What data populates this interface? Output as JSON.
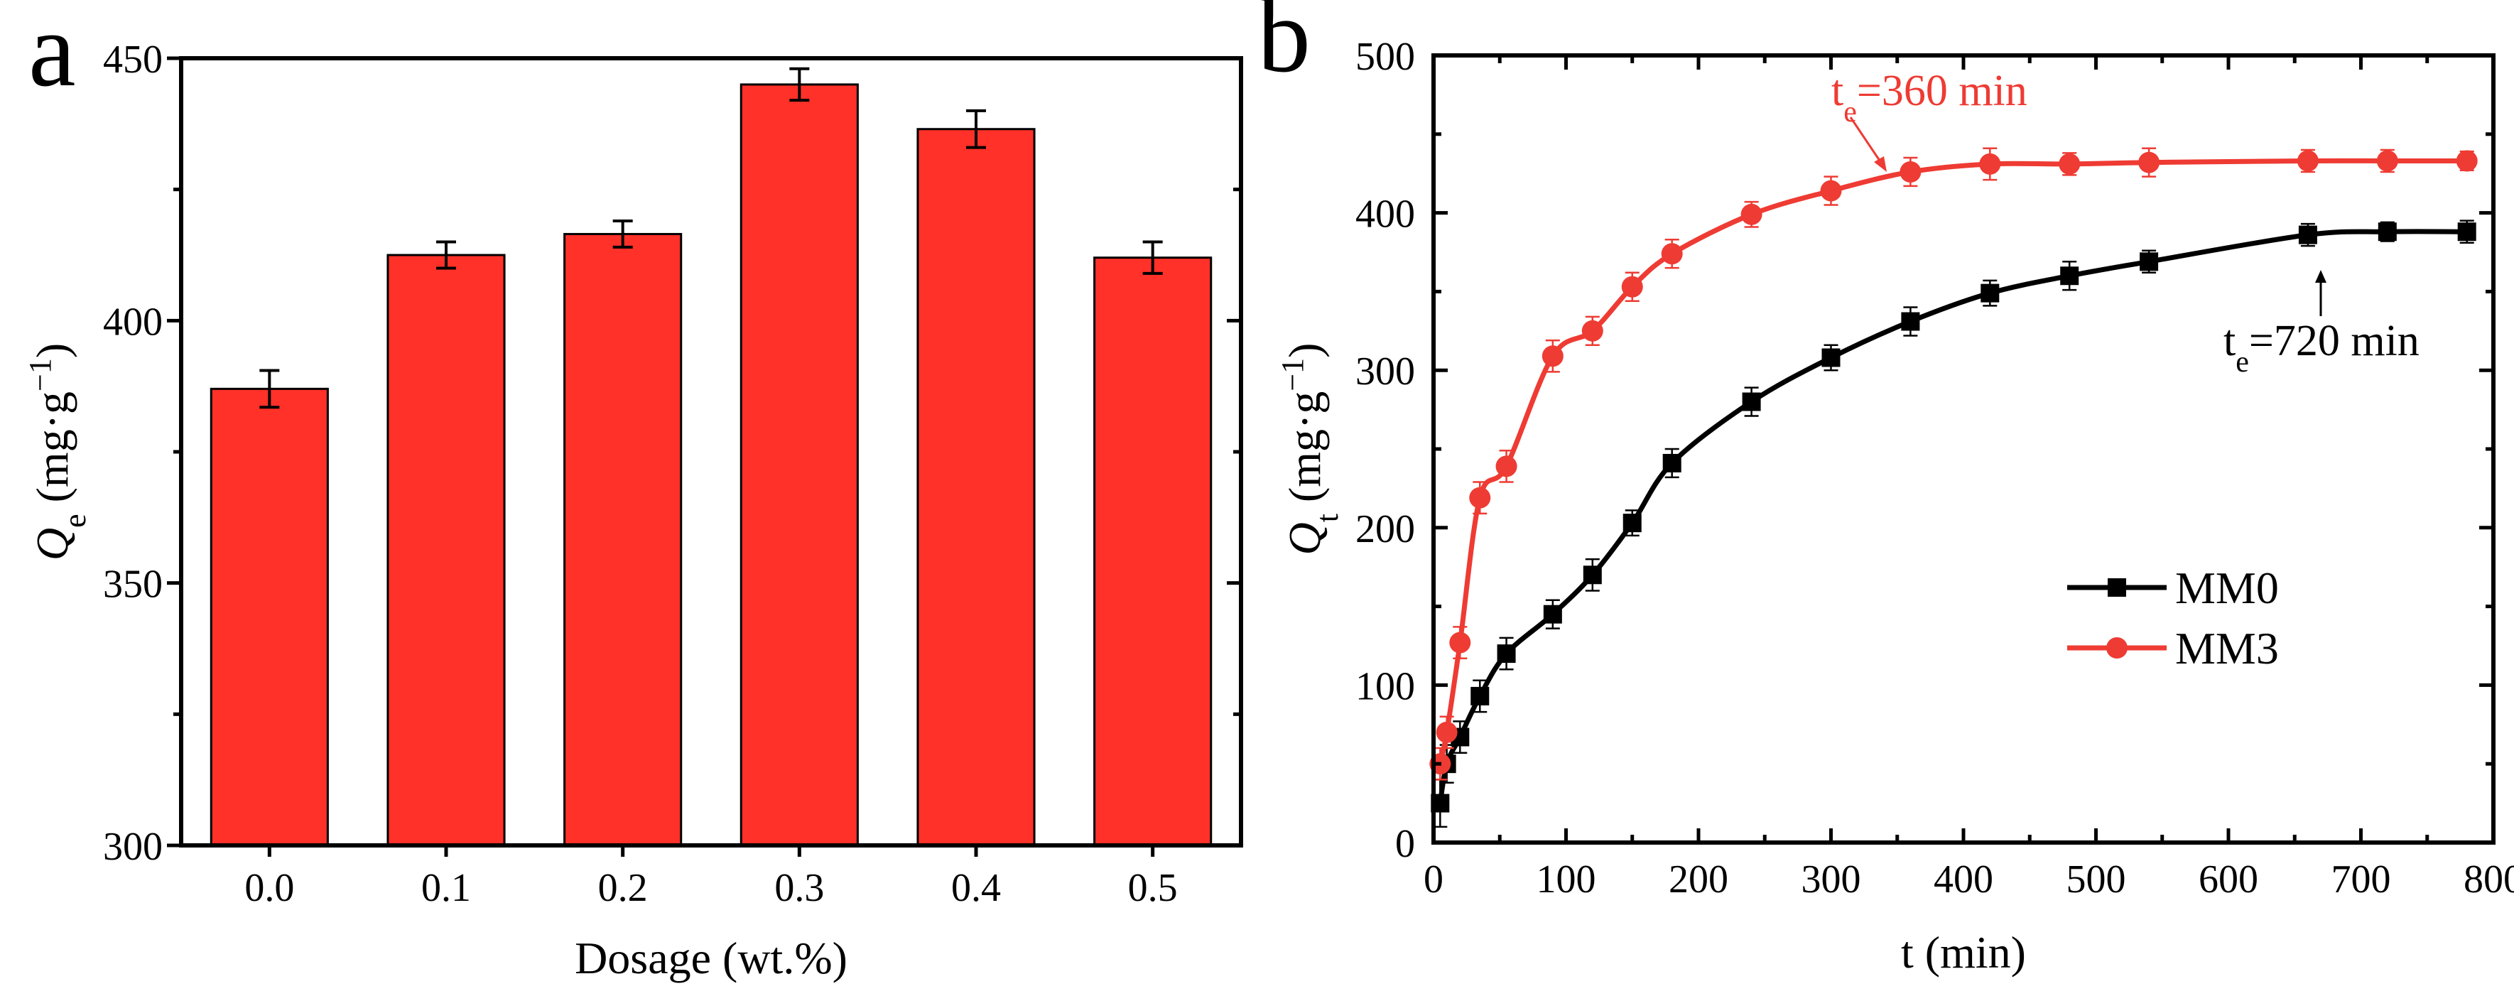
{
  "chart_data": [
    {
      "panel_label": "a",
      "type": "bar",
      "xlabel": "Dosage (wt.%)",
      "ylabel": {
        "main": "Q",
        "sub": "e",
        "units": " (mg·g",
        "sup": "−1",
        "close": ")"
      },
      "categories": [
        "0.0",
        "0.1",
        "0.2",
        "0.3",
        "0.4",
        "0.5"
      ],
      "values": [
        387,
        412.5,
        416.5,
        445,
        436.5,
        412
      ],
      "errors": [
        3.5,
        2.5,
        2.5,
        3,
        3.5,
        3
      ],
      "ylim": [
        300,
        450
      ],
      "yticks": [
        "300",
        "350",
        "400",
        "450"
      ],
      "bar_color": "#ff3129",
      "grid": false
    },
    {
      "panel_label": "b",
      "type": "line",
      "xlabel": "t (min)",
      "ylabel": {
        "main": "Q",
        "sub": "t",
        "units": " (mg·g",
        "sup": "−1",
        "close": ")"
      },
      "xlim": [
        0,
        800
      ],
      "ylim": [
        0,
        500
      ],
      "xticks": [
        "0",
        "100",
        "200",
        "300",
        "400",
        "500",
        "600",
        "700",
        "800"
      ],
      "yticks": [
        "0",
        "100",
        "200",
        "300",
        "400",
        "500"
      ],
      "legend_position": "center-right",
      "grid": false,
      "series": [
        {
          "name": "MM0",
          "color": "#000000",
          "marker": "square",
          "x": [
            5,
            10,
            20,
            35,
            55,
            90,
            120,
            150,
            180,
            240,
            300,
            360,
            420,
            480,
            540,
            660,
            720,
            780
          ],
          "y": [
            25,
            50,
            67,
            93,
            120,
            145,
            170,
            203,
            241,
            280,
            308,
            331,
            349,
            360,
            369,
            386,
            388,
            388
          ],
          "errors": [
            15,
            12,
            10,
            10,
            10,
            9,
            10,
            8,
            9,
            9,
            8,
            9,
            8,
            9,
            7,
            7,
            6,
            7
          ]
        },
        {
          "name": "MM3",
          "color": "#ee3b33",
          "marker": "circle",
          "x": [
            5,
            10,
            20,
            35,
            55,
            90,
            120,
            150,
            180,
            240,
            300,
            360,
            420,
            480,
            540,
            660,
            720,
            780
          ],
          "y": [
            50,
            70,
            127,
            219,
            239,
            309,
            325,
            353,
            374,
            399,
            414,
            426,
            431,
            431,
            432,
            433,
            433,
            433
          ],
          "errors": [
            10,
            10,
            10,
            10,
            10,
            10,
            9,
            9,
            9,
            8,
            9,
            9,
            10,
            7,
            9,
            7,
            7,
            6
          ]
        }
      ],
      "annotations": [
        {
          "main": "t",
          "sub": "e",
          "text": "=360 min",
          "color": "#ee3b33",
          "target_x": 360,
          "target_y": 426
        },
        {
          "main": "t",
          "sub": "e",
          "text": "=720 min",
          "color": "#000000",
          "target_x": 720,
          "target_y": 388
        }
      ]
    }
  ]
}
